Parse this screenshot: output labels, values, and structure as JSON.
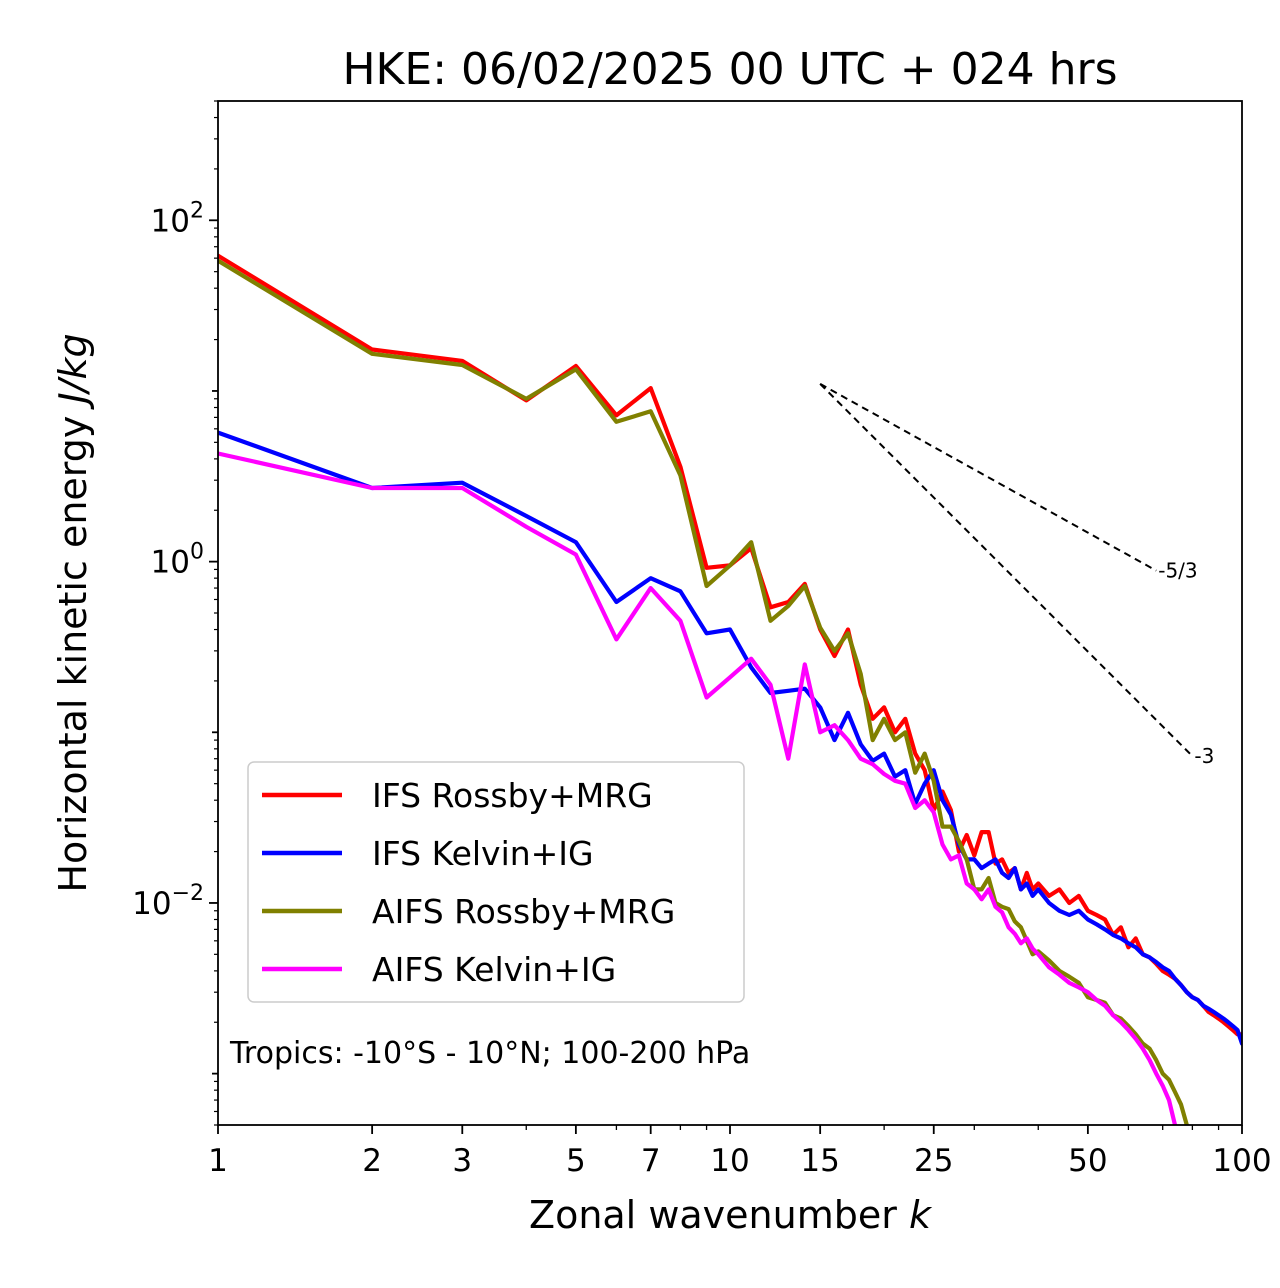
{
  "chart_data": {
    "type": "line",
    "title": "HKE: 06/02/2025 00 UTC + 024 hrs",
    "xlabel_main": "Zonal wavenumber ",
    "xlabel_var": "k",
    "ylabel_main": "Horizontal kinetic energy ",
    "ylabel_var": "J/kg",
    "x_scale": "log",
    "y_scale": "log",
    "xlim": [
      1,
      100
    ],
    "ylim": [
      0.0005,
      500
    ],
    "x_ticks": [
      1,
      2,
      3,
      5,
      7,
      10,
      15,
      25,
      50,
      100
    ],
    "x_tick_labels": [
      "1",
      "2",
      "3",
      "5",
      "7",
      "10",
      "15",
      "25",
      "50",
      "100"
    ],
    "y_ticks": [
      {
        "value": 100,
        "base": "10",
        "exp": "2"
      },
      {
        "value": 1,
        "base": "10",
        "exp": "0"
      },
      {
        "value": 0.01,
        "base": "10",
        "exp": "−2"
      }
    ],
    "grid": false,
    "legend_position": "lower-left",
    "annotation": "Tropics: -10°S - 10°N; 100-200 hPa",
    "reference_slopes": [
      {
        "label": "-5/3",
        "slope": -1.6667,
        "x_start": 15,
        "y_start": 11,
        "x_end": 68
      },
      {
        "label": "-3",
        "slope": -3,
        "x_start": 15,
        "y_start": 11,
        "x_end": 80
      }
    ],
    "series": [
      {
        "name": "IFS Rossby+MRG",
        "color": "#ff0000",
        "x": [
          1,
          2,
          3,
          4,
          5,
          6,
          7,
          8,
          9,
          10,
          11,
          12,
          13,
          14,
          15,
          16,
          17,
          18,
          19,
          20,
          21,
          22,
          23,
          24,
          25,
          26,
          27,
          28,
          29,
          30,
          31,
          32,
          33,
          34,
          35,
          36,
          37,
          38,
          39,
          40,
          42,
          44,
          46,
          48,
          50,
          52,
          54,
          56,
          58,
          60,
          62,
          64,
          66,
          68,
          70,
          72,
          74,
          76,
          78,
          80,
          82,
          84,
          86,
          88,
          90,
          92,
          94,
          96,
          98,
          100
        ],
        "values": [
          62,
          17.5,
          15,
          8.8,
          14,
          7.2,
          10.4,
          3.6,
          0.92,
          0.95,
          1.2,
          0.54,
          0.58,
          0.74,
          0.4,
          0.28,
          0.4,
          0.19,
          0.12,
          0.14,
          0.1,
          0.12,
          0.075,
          0.06,
          0.035,
          0.045,
          0.035,
          0.02,
          0.025,
          0.019,
          0.026,
          0.026,
          0.017,
          0.018,
          0.015,
          0.016,
          0.012,
          0.015,
          0.012,
          0.013,
          0.011,
          0.012,
          0.01,
          0.011,
          0.009,
          0.0085,
          0.008,
          0.0065,
          0.0072,
          0.0055,
          0.0062,
          0.005,
          0.0048,
          0.0044,
          0.004,
          0.0038,
          0.0036,
          0.0033,
          0.003,
          0.0028,
          0.0027,
          0.0025,
          0.0023,
          0.0022,
          0.0021,
          0.002,
          0.0019,
          0.0018,
          0.0017,
          0.0017
        ]
      },
      {
        "name": "IFS Kelvin+IG",
        "color": "#0000ff",
        "x": [
          1,
          2,
          3,
          4,
          5,
          6,
          7,
          8,
          9,
          10,
          11,
          12,
          13,
          14,
          15,
          16,
          17,
          18,
          19,
          20,
          21,
          22,
          23,
          24,
          25,
          26,
          27,
          28,
          29,
          30,
          31,
          32,
          33,
          34,
          35,
          36,
          37,
          38,
          39,
          40,
          42,
          44,
          46,
          48,
          50,
          52,
          54,
          56,
          58,
          60,
          62,
          64,
          66,
          68,
          70,
          72,
          74,
          76,
          78,
          80,
          82,
          84,
          86,
          88,
          90,
          92,
          94,
          96,
          98,
          100
        ],
        "values": [
          5.7,
          2.7,
          2.9,
          1.85,
          1.3,
          0.58,
          0.8,
          0.67,
          0.38,
          0.4,
          0.24,
          0.17,
          0.175,
          0.18,
          0.14,
          0.09,
          0.13,
          0.085,
          0.068,
          0.075,
          0.055,
          0.06,
          0.038,
          0.05,
          0.06,
          0.04,
          0.033,
          0.022,
          0.018,
          0.018,
          0.016,
          0.017,
          0.018,
          0.015,
          0.014,
          0.016,
          0.012,
          0.013,
          0.011,
          0.012,
          0.01,
          0.009,
          0.0085,
          0.009,
          0.008,
          0.0075,
          0.007,
          0.0065,
          0.0062,
          0.0058,
          0.0055,
          0.005,
          0.0048,
          0.0045,
          0.0042,
          0.004,
          0.0036,
          0.0033,
          0.003,
          0.0028,
          0.0027,
          0.0025,
          0.0024,
          0.0023,
          0.0022,
          0.0021,
          0.002,
          0.0019,
          0.0018,
          0.0015
        ]
      },
      {
        "name": "AIFS Rossby+MRG",
        "color": "#808000",
        "x": [
          1,
          2,
          3,
          4,
          5,
          6,
          7,
          8,
          9,
          10,
          11,
          12,
          13,
          14,
          15,
          16,
          17,
          18,
          19,
          20,
          21,
          22,
          23,
          24,
          25,
          26,
          27,
          28,
          29,
          30,
          31,
          32,
          33,
          34,
          35,
          36,
          37,
          38,
          39,
          40,
          42,
          44,
          46,
          48,
          50,
          52,
          54,
          56,
          58,
          60,
          62,
          64,
          66,
          68,
          70,
          72,
          74,
          76,
          78
        ],
        "values": [
          58,
          16.5,
          14.2,
          9.0,
          13.4,
          6.6,
          7.6,
          3.2,
          0.72,
          0.95,
          1.3,
          0.45,
          0.55,
          0.72,
          0.41,
          0.3,
          0.38,
          0.22,
          0.09,
          0.12,
          0.09,
          0.1,
          0.058,
          0.075,
          0.052,
          0.028,
          0.028,
          0.023,
          0.018,
          0.012,
          0.012,
          0.014,
          0.01,
          0.0095,
          0.0092,
          0.0078,
          0.0072,
          0.006,
          0.005,
          0.0052,
          0.0046,
          0.004,
          0.0037,
          0.0034,
          0.0028,
          0.0027,
          0.0026,
          0.0022,
          0.0021,
          0.0019,
          0.0017,
          0.0015,
          0.0014,
          0.0012,
          0.001,
          0.00092,
          0.00078,
          0.00066,
          0.0005
        ]
      },
      {
        "name": "AIFS Kelvin+IG",
        "color": "#ff00ff",
        "x": [
          1,
          2,
          3,
          4,
          5,
          6,
          7,
          8,
          9,
          10,
          11,
          12,
          13,
          14,
          15,
          16,
          17,
          18,
          19,
          20,
          21,
          22,
          23,
          24,
          25,
          26,
          27,
          28,
          29,
          30,
          31,
          32,
          33,
          34,
          35,
          36,
          37,
          38,
          39,
          40,
          42,
          44,
          46,
          48,
          50,
          52,
          54,
          56,
          58,
          60,
          62,
          64,
          66,
          68,
          70,
          72,
          74
        ],
        "values": [
          4.3,
          2.7,
          2.7,
          1.6,
          1.1,
          0.35,
          0.7,
          0.45,
          0.16,
          0.21,
          0.27,
          0.19,
          0.07,
          0.25,
          0.1,
          0.11,
          0.09,
          0.07,
          0.065,
          0.057,
          0.052,
          0.05,
          0.036,
          0.04,
          0.034,
          0.022,
          0.018,
          0.019,
          0.013,
          0.012,
          0.0105,
          0.012,
          0.0095,
          0.0088,
          0.0072,
          0.0066,
          0.0058,
          0.0062,
          0.0054,
          0.005,
          0.0042,
          0.0038,
          0.0034,
          0.0032,
          0.003,
          0.0027,
          0.0025,
          0.0022,
          0.002,
          0.0018,
          0.0016,
          0.0014,
          0.0012,
          0.001,
          0.00085,
          0.0007,
          0.0005
        ]
      }
    ]
  }
}
